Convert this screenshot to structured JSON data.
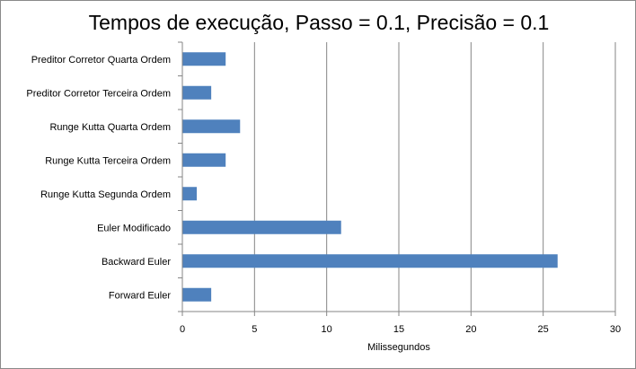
{
  "chart_data": {
    "type": "bar",
    "orientation": "horizontal",
    "title": "Tempos de execução, Passo = 0.1, Precisão = 0.1",
    "xlabel": "Milissegundos",
    "ylabel": "",
    "xlim": [
      0,
      30
    ],
    "xticks": [
      "0",
      "5",
      "10",
      "15",
      "20",
      "25",
      "30"
    ],
    "xtick_values": [
      0,
      5,
      10,
      15,
      20,
      25,
      30
    ],
    "grid": "vertical",
    "legend": "none",
    "categories": [
      "Forward Euler",
      "Backward Euler",
      "Euler Modificado",
      "Runge Kutta Segunda Ordem",
      "Runge Kutta Terceira Ordem",
      "Runge Kutta Quarta Ordem",
      "Preditor Corretor Terceira Ordem",
      "Preditor Corretor Quarta Ordem"
    ],
    "values": [
      2,
      26,
      11,
      1,
      3,
      4,
      2,
      3
    ],
    "colors": {
      "bar": "#4f81bd",
      "grid": "#868686",
      "axis": "#868686"
    }
  }
}
